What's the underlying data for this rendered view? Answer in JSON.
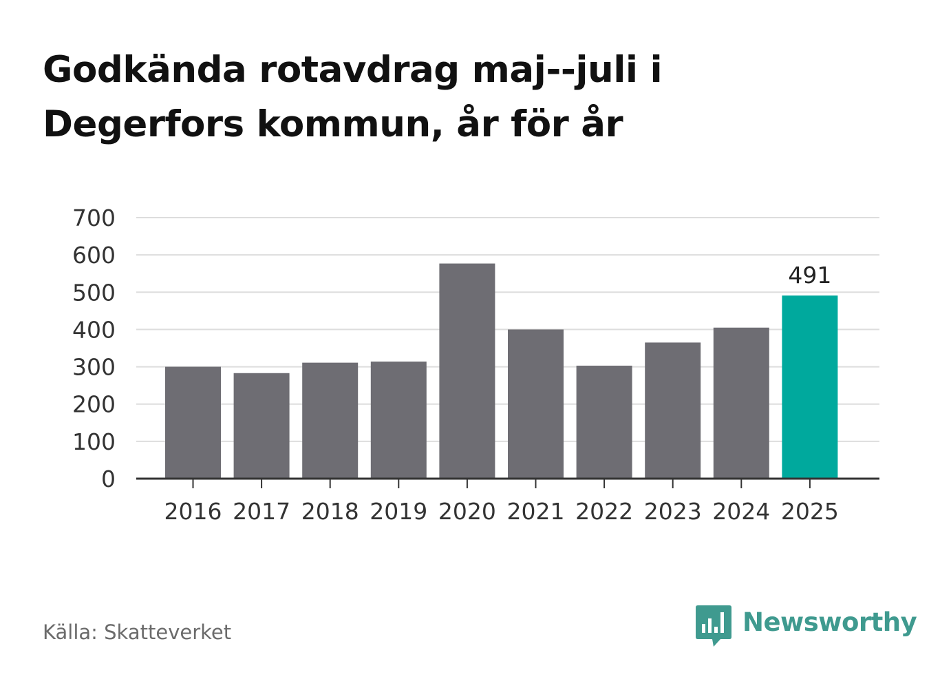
{
  "title": "Godkända rotavdrag maj--juli i Degerfors kommun, år för år",
  "source": "Källa: Skatteverket",
  "brand": {
    "name": "Newsworthy",
    "icon": "newsworthy-logo-icon",
    "color": "#3f9a8f"
  },
  "colors": {
    "bar": "#6e6d73",
    "highlight": "#00a99d",
    "grid": "#dddddd",
    "axis": "#333333",
    "tick_text": "#333333",
    "label_text": "#222222"
  },
  "chart_data": {
    "type": "bar",
    "title": "Godkända rotavdrag maj--juli i Degerfors kommun, år för år",
    "xlabel": "",
    "ylabel": "",
    "categories": [
      "2016",
      "2017",
      "2018",
      "2019",
      "2020",
      "2021",
      "2022",
      "2023",
      "2024",
      "2025"
    ],
    "values": [
      300,
      283,
      311,
      314,
      577,
      400,
      303,
      365,
      405,
      491
    ],
    "ylim": [
      0,
      700
    ],
    "yticks": [
      "0",
      "100",
      "200",
      "300",
      "400",
      "500",
      "600",
      "700"
    ],
    "grid": true,
    "highlight_category": "2025",
    "data_labels": [
      {
        "category": "2025",
        "text": "491"
      }
    ]
  }
}
